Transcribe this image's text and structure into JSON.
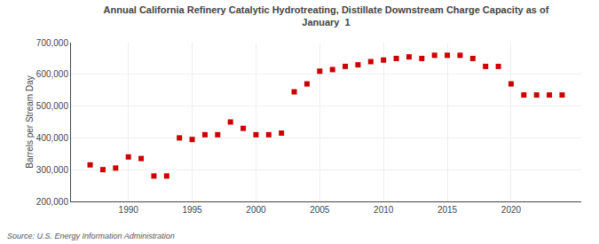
{
  "chart_data": {
    "type": "scatter",
    "title": "Annual California Refinery Catalytic Hydrotreating, Distillate Downstream Charge Capacity as of\nJanuary  1",
    "y_label": "Barrels per Stream Day",
    "annotations": [
      "Source: U.S. Energy Information Administration"
    ],
    "x": [
      1987,
      1988,
      1989,
      1990,
      1991,
      1992,
      1993,
      1994,
      1995,
      1996,
      1997,
      1998,
      1999,
      2000,
      2001,
      2002,
      2003,
      2004,
      2005,
      2006,
      2007,
      2008,
      2009,
      2010,
      2011,
      2012,
      2013,
      2014,
      2015,
      2016,
      2017,
      2018,
      2019,
      2020,
      2021,
      2022,
      2023,
      2024
    ],
    "values": [
      315000,
      300000,
      305000,
      340000,
      335000,
      280000,
      280000,
      400000,
      395000,
      410000,
      410000,
      450000,
      430000,
      410000,
      410000,
      415000,
      545000,
      570000,
      610000,
      615000,
      625000,
      630000,
      640000,
      645000,
      650000,
      655000,
      650000,
      660000,
      660000,
      660000,
      650000,
      625000,
      625000,
      570000,
      535000,
      535000,
      535000,
      535000
    ],
    "color": "#cc0000",
    "marker": "square",
    "xlim": [
      1985.5,
      2025.5
    ],
    "xticks": [
      1990,
      1995,
      2000,
      2005,
      2010,
      2015,
      2020
    ],
    "ylim": [
      200000,
      700000
    ],
    "yticks": [
      {
        "value": 200000,
        "label": "200,000"
      },
      {
        "value": 300000,
        "label": "300,000"
      },
      {
        "value": 400000,
        "label": "400,000"
      },
      {
        "value": 500000,
        "label": "500,000"
      },
      {
        "value": 600000,
        "label": "600,000"
      },
      {
        "value": 700000,
        "label": "700,000"
      }
    ],
    "grid": true
  }
}
